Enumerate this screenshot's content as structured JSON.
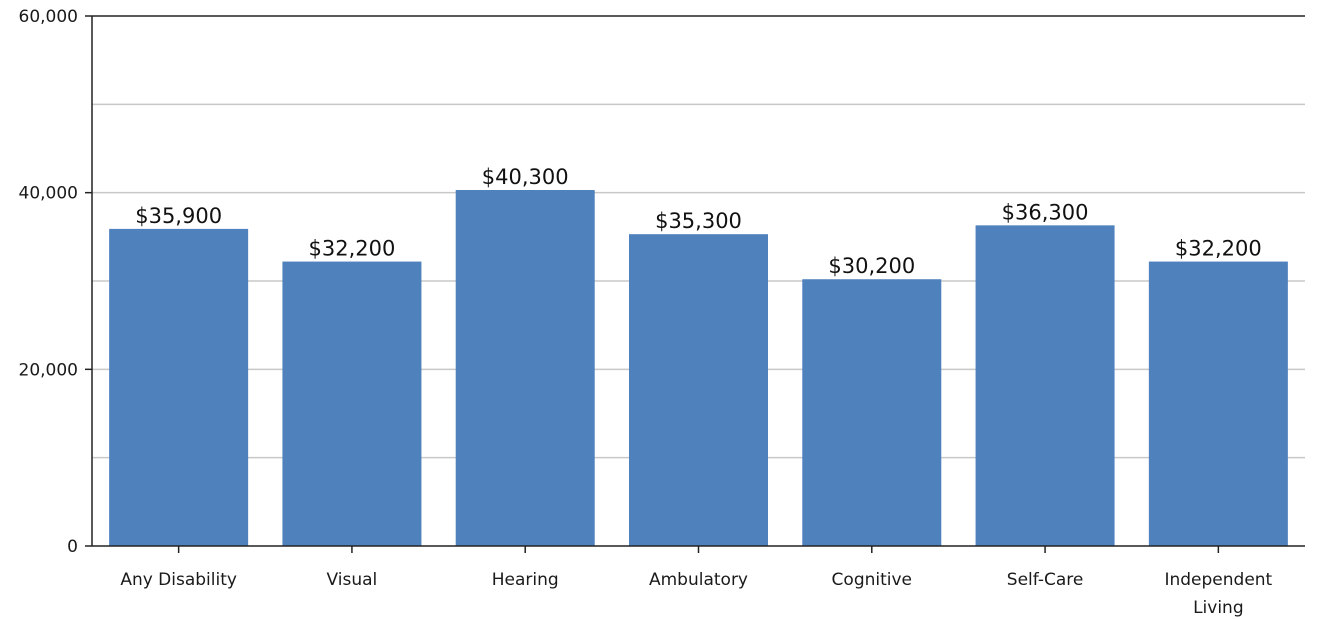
{
  "chart_data": {
    "type": "bar",
    "categories": [
      [
        "Any Disability"
      ],
      [
        "Visual"
      ],
      [
        "Hearing"
      ],
      [
        "Ambulatory"
      ],
      [
        "Cognitive"
      ],
      [
        "Self-Care"
      ],
      [
        "Independent",
        "Living"
      ]
    ],
    "values": [
      35900,
      32200,
      40300,
      35300,
      30200,
      36300,
      32200
    ],
    "data_labels": [
      "$35,900",
      "$32,200",
      "$40,300",
      "$35,300",
      "$30,200",
      "$36,300",
      "$32,200"
    ],
    "ylim": [
      0,
      60000
    ],
    "gridlines": [
      10000,
      20000,
      30000,
      40000,
      50000
    ],
    "y_ticks": [
      {
        "value": 0,
        "label": "0"
      },
      {
        "value": 20000,
        "label": "20,000"
      },
      {
        "value": 40000,
        "label": "40,000"
      },
      {
        "value": 60000,
        "label": "60,000"
      }
    ],
    "title": "",
    "xlabel": "",
    "ylabel": "",
    "grid": true,
    "colors": {
      "bar": "#4f81bd",
      "grid": "#c8c8c8",
      "axis": "#222222"
    }
  }
}
